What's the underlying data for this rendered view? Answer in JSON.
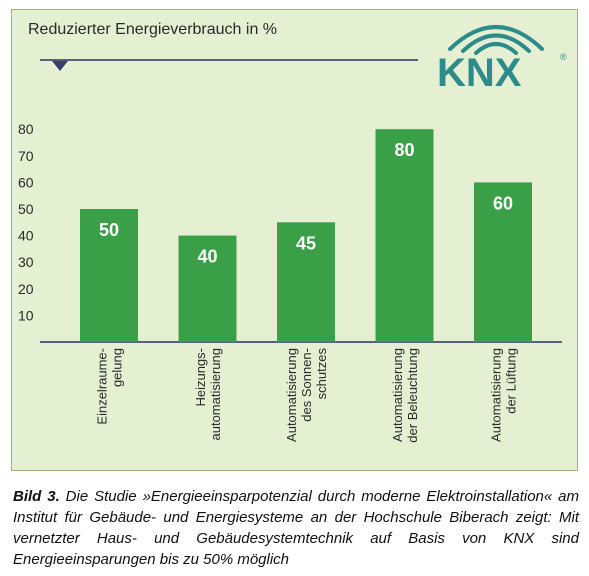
{
  "chart_data": {
    "type": "bar",
    "title": "Reduzierter Energieverbrauch in %",
    "categories": [
      [
        "Einzelraume-",
        "gelung"
      ],
      [
        "Heizungs-",
        "automatisierung"
      ],
      [
        "Automatisierung",
        "des Sonnen-",
        "schutzes"
      ],
      [
        "Automatisierung",
        "der Beleuchtung"
      ],
      [
        "Automatisierung",
        "der Lüftung"
      ]
    ],
    "values": [
      50,
      40,
      45,
      80,
      60
    ],
    "value_labels": [
      "50",
      "40",
      "45",
      "80",
      "60"
    ],
    "yticks": [
      "10",
      "20",
      "30",
      "40",
      "50",
      "60",
      "70",
      "80"
    ],
    "ylim": [
      0,
      90
    ],
    "grid": false,
    "bar_color": "#3aa048",
    "label_color": "#ffffff"
  },
  "logo": {
    "text": "KNX",
    "mark": "®",
    "color": "#2e8b8b"
  },
  "caption": {
    "label": "Bild 3.",
    "text": " Die Studie »Energieeinsparpotenzial durch moderne Elektroinstallation« am Institut für Gebäude- und Energiesysteme an der Hochschule Biberach zeigt: Mit vernetzter Haus- und Gebäudesystemtechnik auf Basis von KNX sind Energieeinsparungen bis zu 50% möglich"
  }
}
